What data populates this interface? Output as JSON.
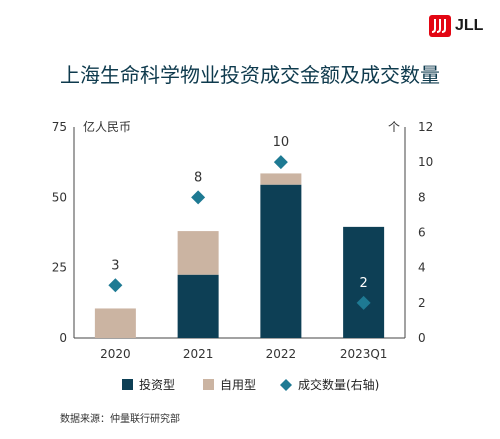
{
  "brand": {
    "name": "JLL"
  },
  "source_note": "数据来源：仲量联行研究部",
  "chart_data": {
    "type": "bar",
    "title": "上海生命科学物业投资成交金额及成交数量",
    "categories": [
      "2020",
      "2021",
      "2022",
      "2023Q1"
    ],
    "ylabel": "亿人民币",
    "y2label": "个",
    "ylim": [
      0,
      75
    ],
    "y2lim": [
      0,
      12
    ],
    "yticks": [
      0,
      25,
      50,
      75
    ],
    "y2ticks": [
      0,
      2,
      4,
      6,
      8,
      10,
      12
    ],
    "stacked": true,
    "series": [
      {
        "name": "投资型",
        "kind": "bar",
        "axis": "left",
        "color": "#0d3f55",
        "values": [
          0,
          22.5,
          54.5,
          39.5
        ]
      },
      {
        "name": "自用型",
        "kind": "bar",
        "axis": "left",
        "color": "#cbb4a2",
        "values": [
          10.5,
          15.5,
          4,
          0
        ]
      },
      {
        "name": "成交数量(右轴)",
        "kind": "diamond",
        "axis": "right",
        "color": "#1e7a93",
        "values": [
          3,
          8,
          10,
          2
        ],
        "labels": [
          "3",
          "8",
          "10",
          "2"
        ]
      }
    ],
    "grid": false,
    "legend": "bottom"
  }
}
